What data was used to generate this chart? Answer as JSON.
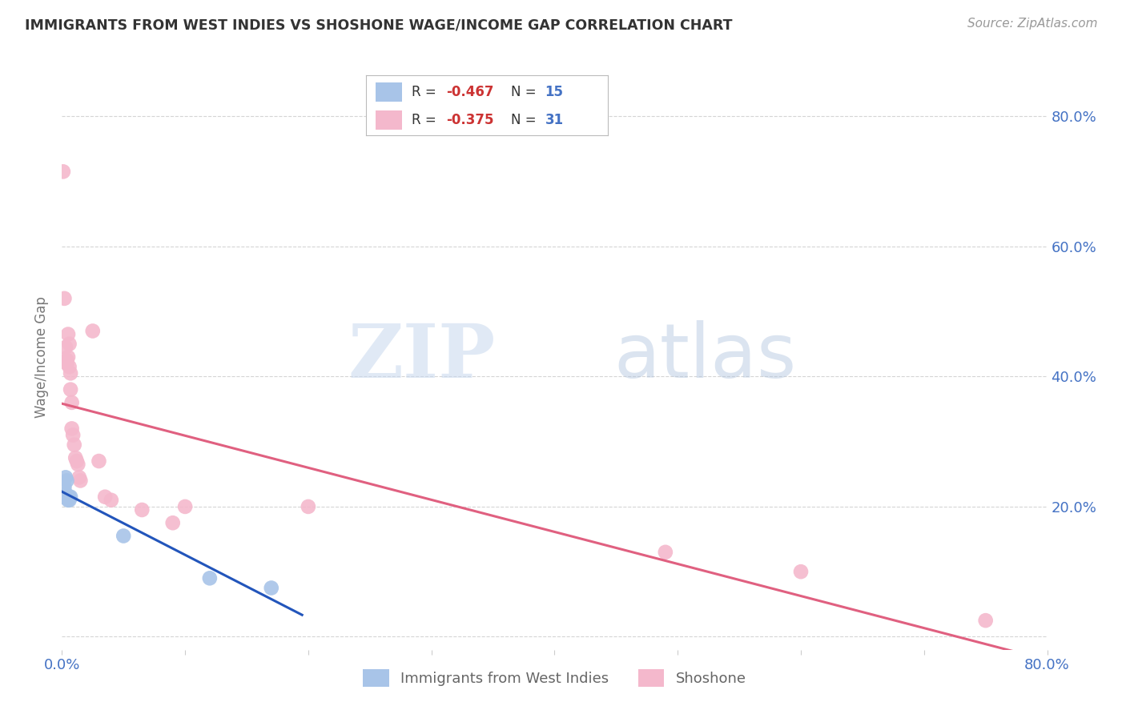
{
  "title": "IMMIGRANTS FROM WEST INDIES VS SHOSHONE WAGE/INCOME GAP CORRELATION CHART",
  "source": "Source: ZipAtlas.com",
  "ylabel": "Wage/Income Gap",
  "xlim": [
    0,
    0.8
  ],
  "ylim": [
    -0.02,
    0.88
  ],
  "xtick_positions": [
    0.0,
    0.1,
    0.2,
    0.3,
    0.4,
    0.5,
    0.6,
    0.7,
    0.8
  ],
  "xtick_labels": [
    "0.0%",
    "",
    "",
    "",
    "",
    "",
    "",
    "",
    "80.0%"
  ],
  "ytick_positions": [
    0.0,
    0.2,
    0.4,
    0.6,
    0.8
  ],
  "ytick_labels": [
    "",
    "20.0%",
    "40.0%",
    "60.0%",
    "80.0%"
  ],
  "legend_r_blue": "-0.467",
  "legend_n_blue": "15",
  "legend_r_pink": "-0.375",
  "legend_n_pink": "31",
  "blue_color": "#a8c4e8",
  "pink_color": "#f4b8cc",
  "blue_line_color": "#2255bb",
  "pink_line_color": "#e06080",
  "watermark_zip": "ZIP",
  "watermark_atlas": "atlas",
  "blue_x": [
    0.001,
    0.002,
    0.003,
    0.003,
    0.004,
    0.004,
    0.005,
    0.005,
    0.005,
    0.006,
    0.006,
    0.007,
    0.05,
    0.12,
    0.17
  ],
  "blue_y": [
    0.215,
    0.23,
    0.245,
    0.22,
    0.24,
    0.215,
    0.215,
    0.215,
    0.21,
    0.215,
    0.21,
    0.215,
    0.155,
    0.09,
    0.075
  ],
  "pink_x": [
    0.001,
    0.002,
    0.003,
    0.004,
    0.004,
    0.005,
    0.005,
    0.006,
    0.006,
    0.007,
    0.007,
    0.008,
    0.008,
    0.009,
    0.01,
    0.011,
    0.012,
    0.013,
    0.014,
    0.015,
    0.025,
    0.03,
    0.035,
    0.04,
    0.065,
    0.09,
    0.1,
    0.2,
    0.49,
    0.6,
    0.75
  ],
  "pink_y": [
    0.715,
    0.52,
    0.445,
    0.42,
    0.425,
    0.43,
    0.465,
    0.415,
    0.45,
    0.405,
    0.38,
    0.36,
    0.32,
    0.31,
    0.295,
    0.275,
    0.27,
    0.265,
    0.245,
    0.24,
    0.47,
    0.27,
    0.215,
    0.21,
    0.195,
    0.175,
    0.2,
    0.2,
    0.13,
    0.1,
    0.025
  ],
  "blue_trendline_x": [
    0.0,
    0.195
  ],
  "pink_trendline_x": [
    0.0,
    0.8
  ]
}
